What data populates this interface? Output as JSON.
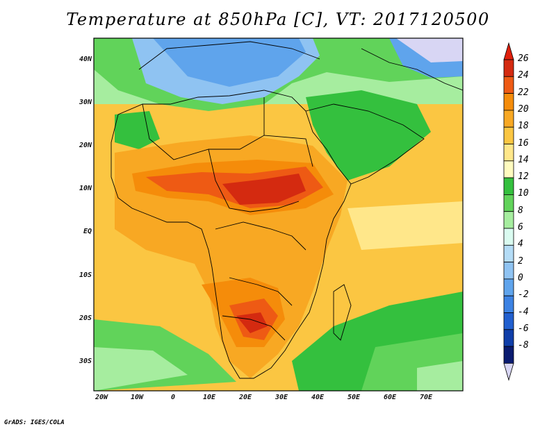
{
  "title": "Temperature at 850hPa [C], VT: 2017120500",
  "y_axis_labels": [
    "40N",
    "30N",
    "20N",
    "10N",
    "EQ",
    "10S",
    "20S",
    "30S"
  ],
  "x_axis_labels": [
    "20W",
    "10W",
    "0",
    "10E",
    "20E",
    "30E",
    "40E",
    "50E",
    "60E",
    "70E"
  ],
  "colorbar": {
    "labels": [
      "26",
      "24",
      "22",
      "20",
      "18",
      "16",
      "14",
      "12",
      "10",
      "8",
      "6",
      "4",
      "2",
      "0",
      "-2",
      "-4",
      "-6",
      "-8"
    ],
    "colors": [
      "#d42a10",
      "#ee5a14",
      "#f58c0a",
      "#f8a823",
      "#fbc642",
      "#ffe78a",
      "#fffbbf",
      "#34c03e",
      "#61d35a",
      "#a6ed9f",
      "#dafbf0",
      "#b4dcf6",
      "#8fc3f2",
      "#5fa4ec",
      "#3c82e3",
      "#215fcf",
      "#0f3ea9",
      "#0a1b70"
    ],
    "top_triangle_color": "#e0200c",
    "bottom_triangle_color": "#d8d6f4"
  },
  "map": {
    "variable": "Temperature at 850hPa",
    "units": "C",
    "valid_time": "2017120500"
  },
  "credit": "GrADS: IGES/COLA"
}
